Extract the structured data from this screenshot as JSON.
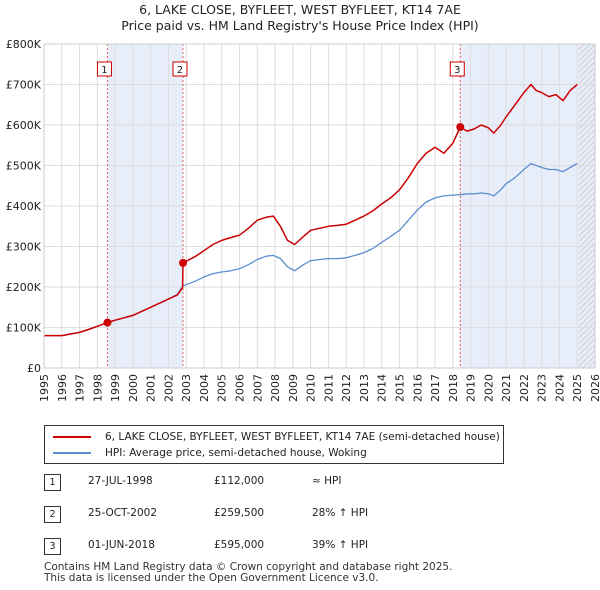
{
  "chart_data": {
    "type": "line",
    "title": "6, LAKE CLOSE, BYFLEET, WEST BYFLEET, KT14 7AE",
    "subtitle": "Price paid vs. HM Land Registry's House Price Index (HPI)",
    "xlabel": "",
    "ylabel": "",
    "xlim": [
      1995,
      2026
    ],
    "ylim": [
      0,
      800000
    ],
    "y_ticks": [
      0,
      100000,
      200000,
      300000,
      400000,
      500000,
      600000,
      700000,
      800000
    ],
    "y_tick_labels": [
      "£0",
      "£100K",
      "£200K",
      "£300K",
      "£400K",
      "£500K",
      "£600K",
      "£700K",
      "£800K"
    ],
    "x_ticks": [
      "1995",
      "1996",
      "1997",
      "1998",
      "1999",
      "2000",
      "2001",
      "2002",
      "2003",
      "2004",
      "2005",
      "2006",
      "2007",
      "2008",
      "2009",
      "2010",
      "2011",
      "2012",
      "2013",
      "2014",
      "2015",
      "2016",
      "2017",
      "2018",
      "2019",
      "2020",
      "2021",
      "2022",
      "2023",
      "2024",
      "2025",
      "2026"
    ],
    "grid": true,
    "colors": {
      "property": "#cc0000",
      "hpi": "#5b8fd0",
      "shade": "#e8edfa",
      "hatch": "#bbbbbb"
    },
    "series": [
      {
        "name": "6, LAKE CLOSE, BYFLEET, WEST BYFLEET, KT14 7AE (semi-detached house)",
        "x": [
          1995.0,
          1996.0,
          1997.0,
          1997.5,
          1998.0,
          1998.57,
          1999.0,
          2000.0,
          2000.5,
          2001.0,
          2001.5,
          2002.0,
          2002.5,
          2002.8,
          2002.82,
          2003.5,
          2004.0,
          2004.5,
          2005.0,
          2005.5,
          2006.0,
          2006.5,
          2007.0,
          2007.5,
          2007.9,
          2008.3,
          2008.7,
          2009.1,
          2009.6,
          2010.0,
          2010.5,
          2011.0,
          2011.5,
          2012.0,
          2012.5,
          2013.0,
          2013.5,
          2014.0,
          2014.5,
          2015.0,
          2015.5,
          2016.0,
          2016.5,
          2017.0,
          2017.5,
          2018.0,
          2018.42,
          2018.8,
          2019.2,
          2019.6,
          2020.0,
          2020.3,
          2020.7,
          2021.0,
          2021.5,
          2022.0,
          2022.4,
          2022.7,
          2023.0,
          2023.4,
          2023.8,
          2024.2,
          2024.6,
          2025.0
        ],
        "values": [
          80000,
          80000,
          88000,
          95000,
          103000,
          112000,
          118000,
          130000,
          140000,
          150000,
          160000,
          170000,
          180000,
          198000,
          259500,
          275000,
          290000,
          305000,
          315000,
          322000,
          328000,
          345000,
          365000,
          372000,
          375000,
          350000,
          315000,
          305000,
          325000,
          340000,
          345000,
          350000,
          352000,
          355000,
          365000,
          375000,
          388000,
          405000,
          420000,
          440000,
          470000,
          505000,
          530000,
          545000,
          530000,
          555000,
          595000,
          585000,
          590000,
          600000,
          593000,
          580000,
          600000,
          620000,
          650000,
          680000,
          700000,
          685000,
          680000,
          670000,
          675000,
          660000,
          685000,
          700000
        ]
      },
      {
        "name": "HPI: Average price, semi-detached house, Woking",
        "x": [
          1995.0,
          1996.0,
          1997.0,
          1997.5,
          1998.0,
          1998.57,
          1999.0,
          2000.0,
          2000.5,
          2001.0,
          2001.5,
          2002.0,
          2002.5,
          2002.82,
          2003.5,
          2004.0,
          2004.5,
          2005.0,
          2005.5,
          2006.0,
          2006.5,
          2007.0,
          2007.5,
          2007.9,
          2008.3,
          2008.7,
          2009.1,
          2009.6,
          2010.0,
          2010.5,
          2011.0,
          2011.5,
          2012.0,
          2012.5,
          2013.0,
          2013.5,
          2014.0,
          2014.5,
          2015.0,
          2015.5,
          2016.0,
          2016.5,
          2017.0,
          2017.5,
          2018.0,
          2018.42,
          2018.8,
          2019.2,
          2019.6,
          2020.0,
          2020.3,
          2020.7,
          2021.0,
          2021.5,
          2022.0,
          2022.4,
          2022.7,
          2023.0,
          2023.4,
          2023.8,
          2024.2,
          2024.6,
          2025.0
        ],
        "values": [
          80000,
          80000,
          88000,
          95000,
          103000,
          112000,
          118000,
          130000,
          140000,
          150000,
          160000,
          170000,
          182000,
          203000,
          214000,
          225000,
          233000,
          237000,
          240000,
          245000,
          255000,
          268000,
          276000,
          278000,
          270000,
          250000,
          240000,
          255000,
          265000,
          268000,
          270000,
          270000,
          272000,
          278000,
          285000,
          295000,
          310000,
          325000,
          340000,
          365000,
          390000,
          410000,
          420000,
          425000,
          427000,
          428000,
          430000,
          430000,
          432000,
          430000,
          425000,
          440000,
          455000,
          470000,
          490000,
          505000,
          500000,
          495000,
          490000,
          490000,
          485000,
          495000,
          505000
        ]
      }
    ],
    "sales": [
      {
        "num": "1",
        "x": 1998.57,
        "price": 112000,
        "date": "27-JUL-1998",
        "price_label": "£112,000",
        "hpi": "≈ HPI"
      },
      {
        "num": "2",
        "x": 2002.82,
        "price": 259500,
        "date": "25-OCT-2002",
        "price_label": "£259,500",
        "hpi": "28% ↑ HPI"
      },
      {
        "num": "3",
        "x": 2018.42,
        "price": 595000,
        "date": "01-JUN-2018",
        "price_label": "£595,000",
        "hpi": "39% ↑ HPI"
      }
    ],
    "hatch_from": 2025.1,
    "legend_position": "bottom"
  },
  "footer": {
    "line1": "Contains HM Land Registry data © Crown copyright and database right 2025.",
    "line2": "This data is licensed under the Open Government Licence v3.0."
  }
}
